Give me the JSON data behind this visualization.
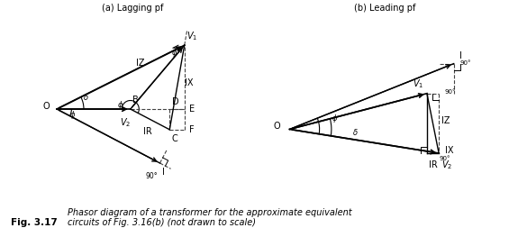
{
  "bg_color": "#ffffff",
  "text_color": "#000000",
  "line_color": "#000000",
  "dashed_color": "#555555",
  "fig_caption": "Fig. 3.17",
  "caption_text": "Phasor diagram of a transformer for the approximate equivalent\ncircuits of Fig. 3.16(b) (not drawn to scale)",
  "label_a": "(a) Lagging pf",
  "label_b": "(b) Leading pf"
}
